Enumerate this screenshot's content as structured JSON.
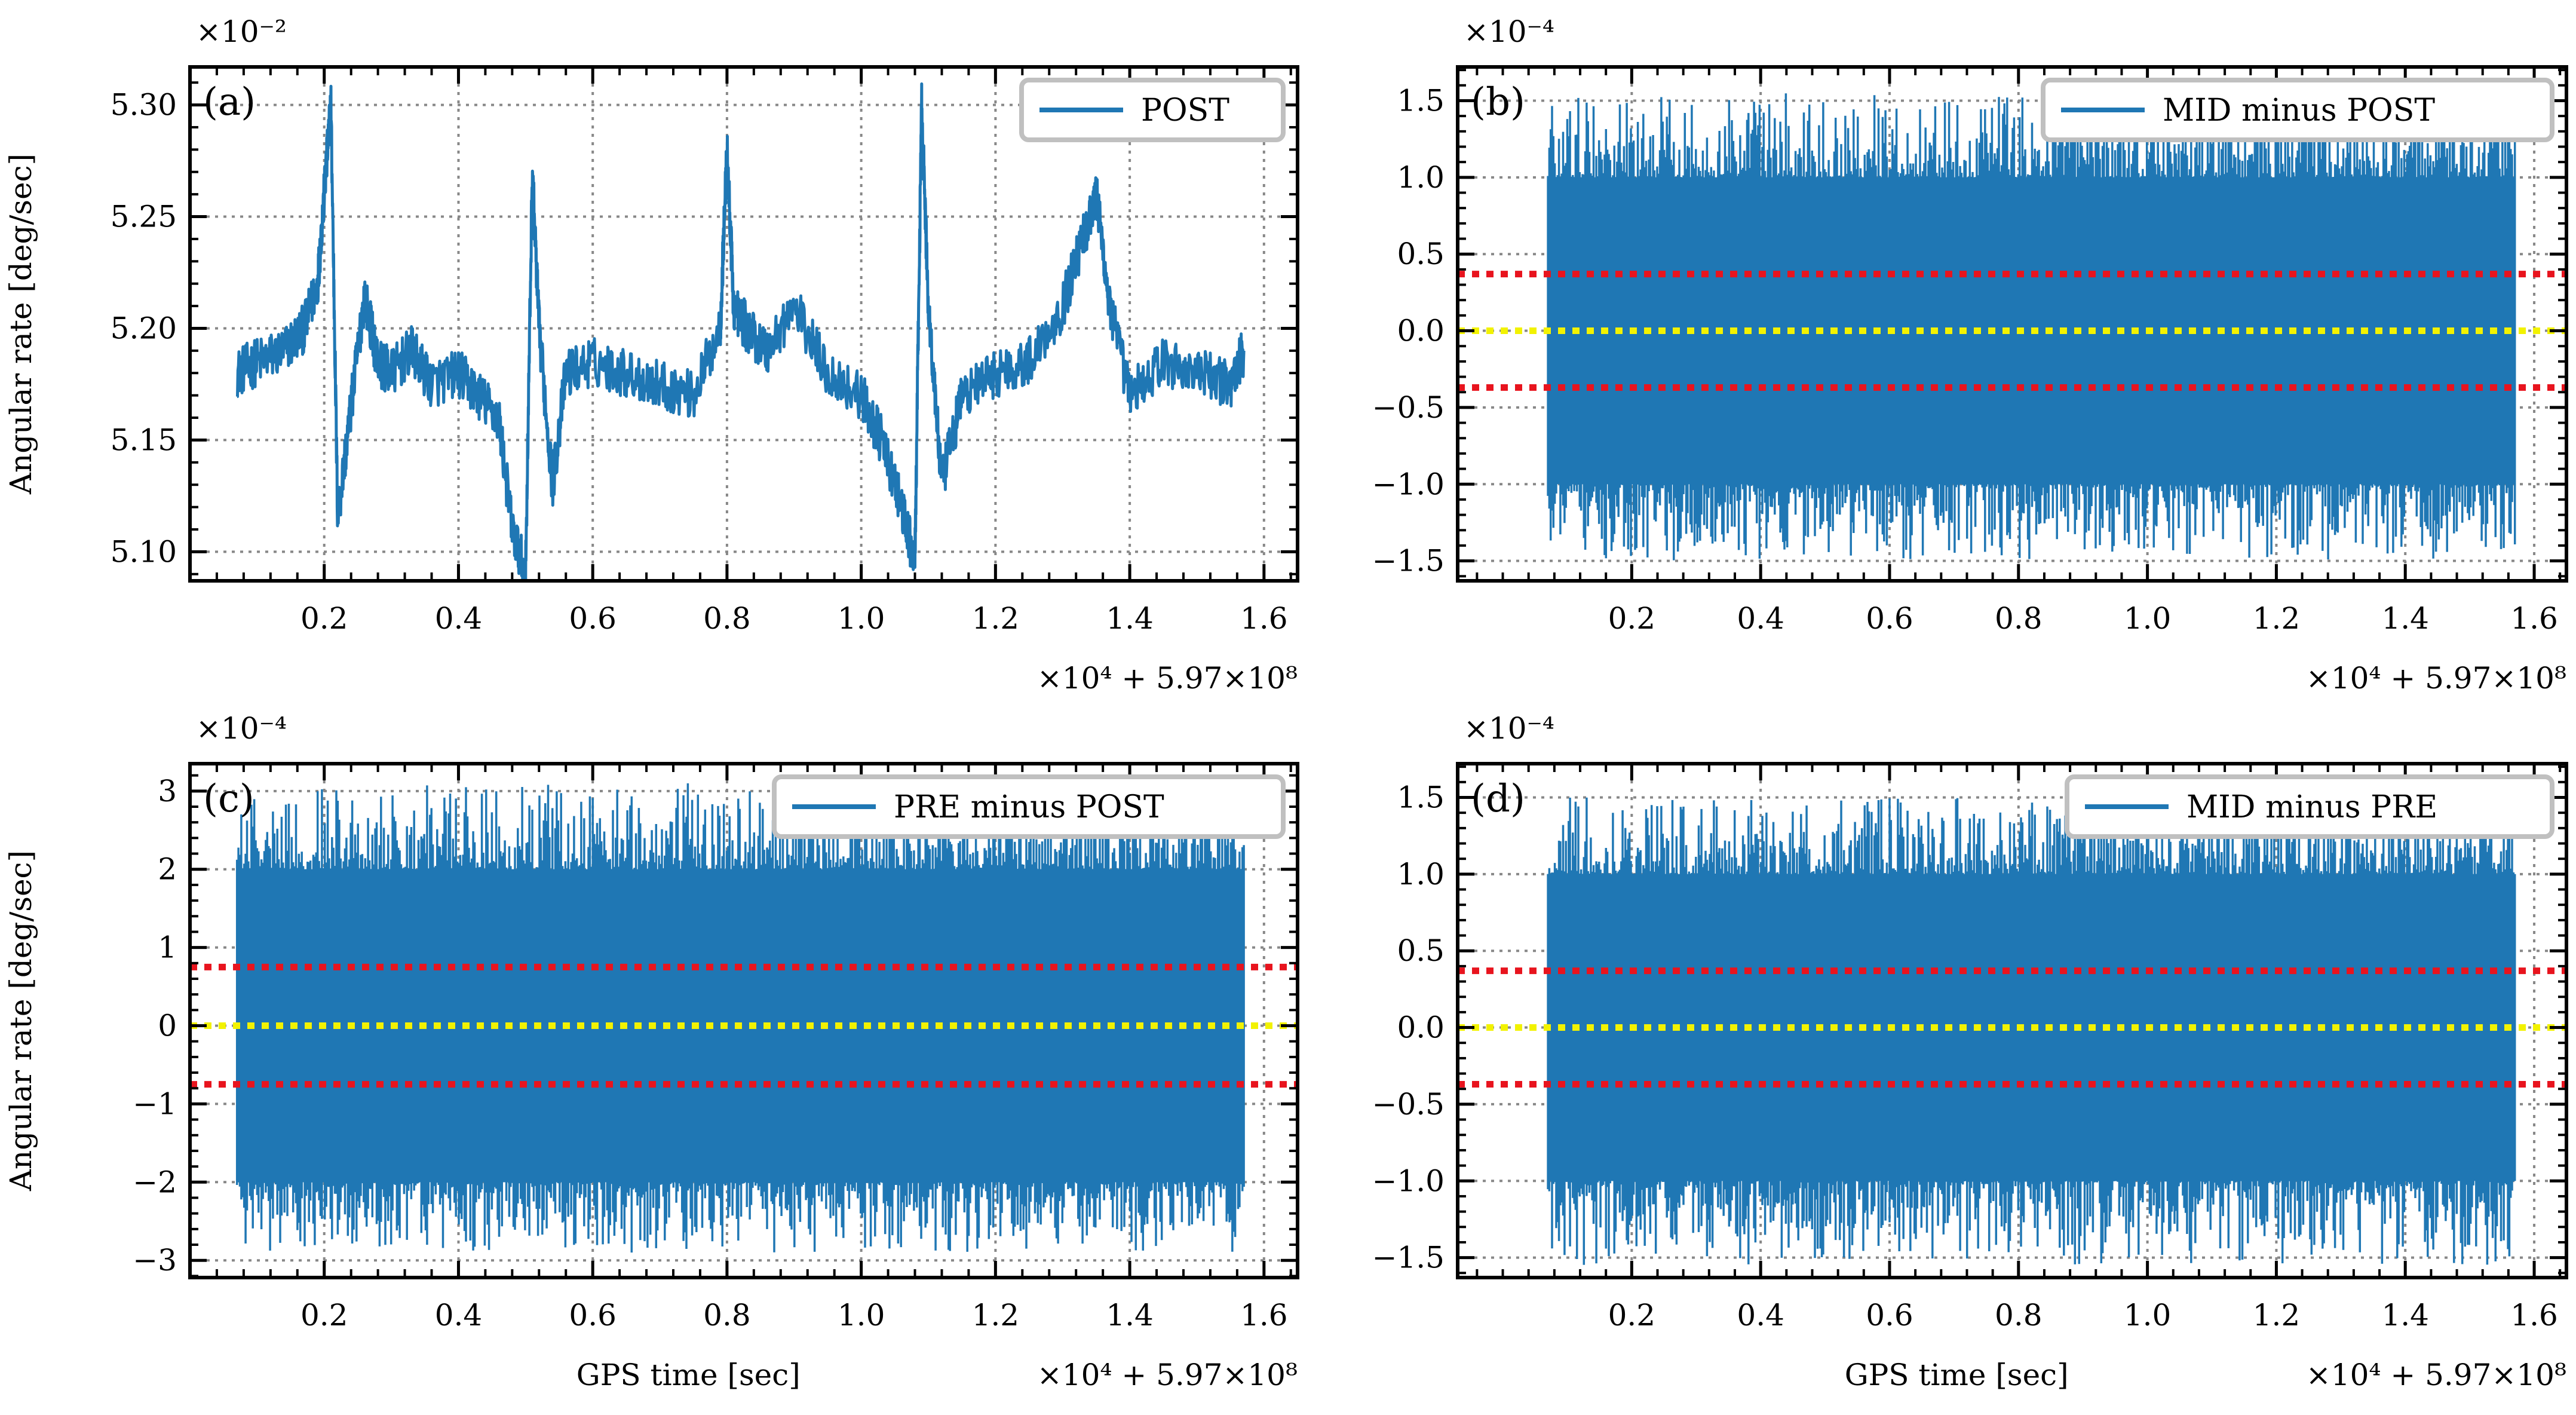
{
  "colors": {
    "series": "#1f77b4",
    "red_band": "#e8141e",
    "yellow_zero": "#f2f200",
    "grid": "#888888",
    "axes": "#000000",
    "legend_edge": "#c0c0c0"
  },
  "chart_data": [
    {
      "id": "a",
      "type": "line",
      "panel_label": "(a)",
      "legend": "POST",
      "ylabel": "Angular rate [deg/sec]",
      "xlabel": "",
      "y_scale_label": "×10⁻²",
      "x_offset_label": "×10⁴ + 5.97×10⁸",
      "xlim": [
        0,
        1.65
      ],
      "ylim": [
        5.087,
        5.317
      ],
      "xticks": [
        0.2,
        0.4,
        0.6,
        0.8,
        1.0,
        1.2,
        1.4,
        1.6
      ],
      "xtick_labels": [
        "0.2",
        "0.4",
        "0.6",
        "0.8",
        "1.0",
        "1.2",
        "1.4",
        "1.6"
      ],
      "yticks": [
        5.1,
        5.15,
        5.2,
        5.25,
        5.3
      ],
      "ytick_labels": [
        "5.10",
        "5.15",
        "5.20",
        "5.25",
        "5.30"
      ],
      "data_range_x": [
        0.07,
        1.57
      ],
      "series": [
        {
          "name": "POST",
          "x": [
            0.07,
            0.1,
            0.14,
            0.17,
            0.19,
            0.2,
            0.21,
            0.22,
            0.24,
            0.26,
            0.28,
            0.3,
            0.33,
            0.36,
            0.4,
            0.43,
            0.46,
            0.48,
            0.5,
            0.51,
            0.52,
            0.54,
            0.56,
            0.6,
            0.65,
            0.7,
            0.75,
            0.79,
            0.8,
            0.81,
            0.83,
            0.86,
            0.9,
            0.95,
            1.0,
            1.03,
            1.06,
            1.08,
            1.09,
            1.1,
            1.12,
            1.15,
            1.2,
            1.25,
            1.3,
            1.34,
            1.35,
            1.37,
            1.4,
            1.45,
            1.5,
            1.55,
            1.57
          ],
          "values": [
            5.18,
            5.185,
            5.19,
            5.2,
            5.22,
            5.26,
            5.3,
            5.115,
            5.165,
            5.215,
            5.185,
            5.18,
            5.19,
            5.175,
            5.18,
            5.17,
            5.16,
            5.11,
            5.09,
            5.27,
            5.2,
            5.13,
            5.18,
            5.185,
            5.18,
            5.175,
            5.17,
            5.2,
            5.28,
            5.21,
            5.2,
            5.19,
            5.21,
            5.18,
            5.17,
            5.15,
            5.12,
            5.095,
            5.3,
            5.21,
            5.13,
            5.17,
            5.18,
            5.185,
            5.21,
            5.25,
            5.26,
            5.21,
            5.17,
            5.185,
            5.18,
            5.175,
            5.19
          ]
        }
      ]
    },
    {
      "id": "b",
      "type": "line",
      "panel_label": "(b)",
      "legend": "MID minus POST",
      "ylabel": "",
      "xlabel": "",
      "y_scale_label": "×10⁻⁴",
      "x_offset_label": "×10⁴ + 5.97×10⁸",
      "xlim": [
        -0.07,
        1.65
      ],
      "ylim": [
        -1.63,
        1.72
      ],
      "xticks": [
        0.2,
        0.4,
        0.6,
        0.8,
        1.0,
        1.2,
        1.4,
        1.6
      ],
      "xtick_labels": [
        "0.2",
        "0.4",
        "0.6",
        "0.8",
        "1.0",
        "1.2",
        "1.4",
        "1.6"
      ],
      "yticks": [
        -1.5,
        -1.0,
        -0.5,
        0.0,
        0.5,
        1.0,
        1.5
      ],
      "ytick_labels": [
        "−1.5",
        "−1.0",
        "−0.5",
        "0.0",
        "0.5",
        "1.0",
        "1.5"
      ],
      "data_range_x": [
        0.07,
        1.57
      ],
      "noise_envelope": {
        "core": 1.0,
        "spike_max": 1.55,
        "spike_min": -1.5
      },
      "hlines": [
        {
          "y": 0.37,
          "color": "red"
        },
        {
          "y": 0.0,
          "color": "yellow"
        },
        {
          "y": -0.37,
          "color": "red"
        }
      ]
    },
    {
      "id": "c",
      "type": "line",
      "panel_label": "(c)",
      "legend": "PRE minus POST",
      "ylabel": "Angular rate [deg/sec]",
      "xlabel": "GPS time [sec]",
      "y_scale_label": "×10⁻⁴",
      "x_offset_label": "×10⁴ + 5.97×10⁸",
      "xlim": [
        0,
        1.65
      ],
      "ylim": [
        -3.22,
        3.35
      ],
      "xticks": [
        0.2,
        0.4,
        0.6,
        0.8,
        1.0,
        1.2,
        1.4,
        1.6
      ],
      "xtick_labels": [
        "0.2",
        "0.4",
        "0.6",
        "0.8",
        "1.0",
        "1.2",
        "1.4",
        "1.6"
      ],
      "yticks": [
        -3,
        -2,
        -1,
        0,
        1,
        2,
        3
      ],
      "ytick_labels": [
        "−3",
        "−2",
        "−1",
        "0",
        "1",
        "2",
        "3"
      ],
      "data_range_x": [
        0.07,
        1.57
      ],
      "noise_envelope": {
        "core": 2.0,
        "spike_max": 3.1,
        "spike_min": -2.9
      },
      "hlines": [
        {
          "y": 0.75,
          "color": "red"
        },
        {
          "y": 0.0,
          "color": "yellow"
        },
        {
          "y": -0.75,
          "color": "red"
        }
      ]
    },
    {
      "id": "d",
      "type": "line",
      "panel_label": "(d)",
      "legend": "MID minus PRE",
      "ylabel": "",
      "xlabel": "GPS time [sec]",
      "y_scale_label": "×10⁻⁴",
      "x_offset_label": "×10⁴ + 5.97×10⁸",
      "xlim": [
        -0.07,
        1.65
      ],
      "ylim": [
        -1.63,
        1.72
      ],
      "xticks": [
        0.2,
        0.4,
        0.6,
        0.8,
        1.0,
        1.2,
        1.4,
        1.6
      ],
      "xtick_labels": [
        "0.2",
        "0.4",
        "0.6",
        "0.8",
        "1.0",
        "1.2",
        "1.4",
        "1.6"
      ],
      "yticks": [
        -1.5,
        -1.0,
        -0.5,
        0.0,
        0.5,
        1.0,
        1.5
      ],
      "ytick_labels": [
        "−1.5",
        "−1.0",
        "−0.5",
        "0.0",
        "0.5",
        "1.0",
        "1.5"
      ],
      "data_range_x": [
        0.07,
        1.57
      ],
      "noise_envelope": {
        "core": 1.0,
        "spike_max": 1.5,
        "spike_min": -1.55
      },
      "hlines": [
        {
          "y": 0.37,
          "color": "red"
        },
        {
          "y": 0.0,
          "color": "yellow"
        },
        {
          "y": -0.37,
          "color": "red"
        }
      ]
    }
  ]
}
